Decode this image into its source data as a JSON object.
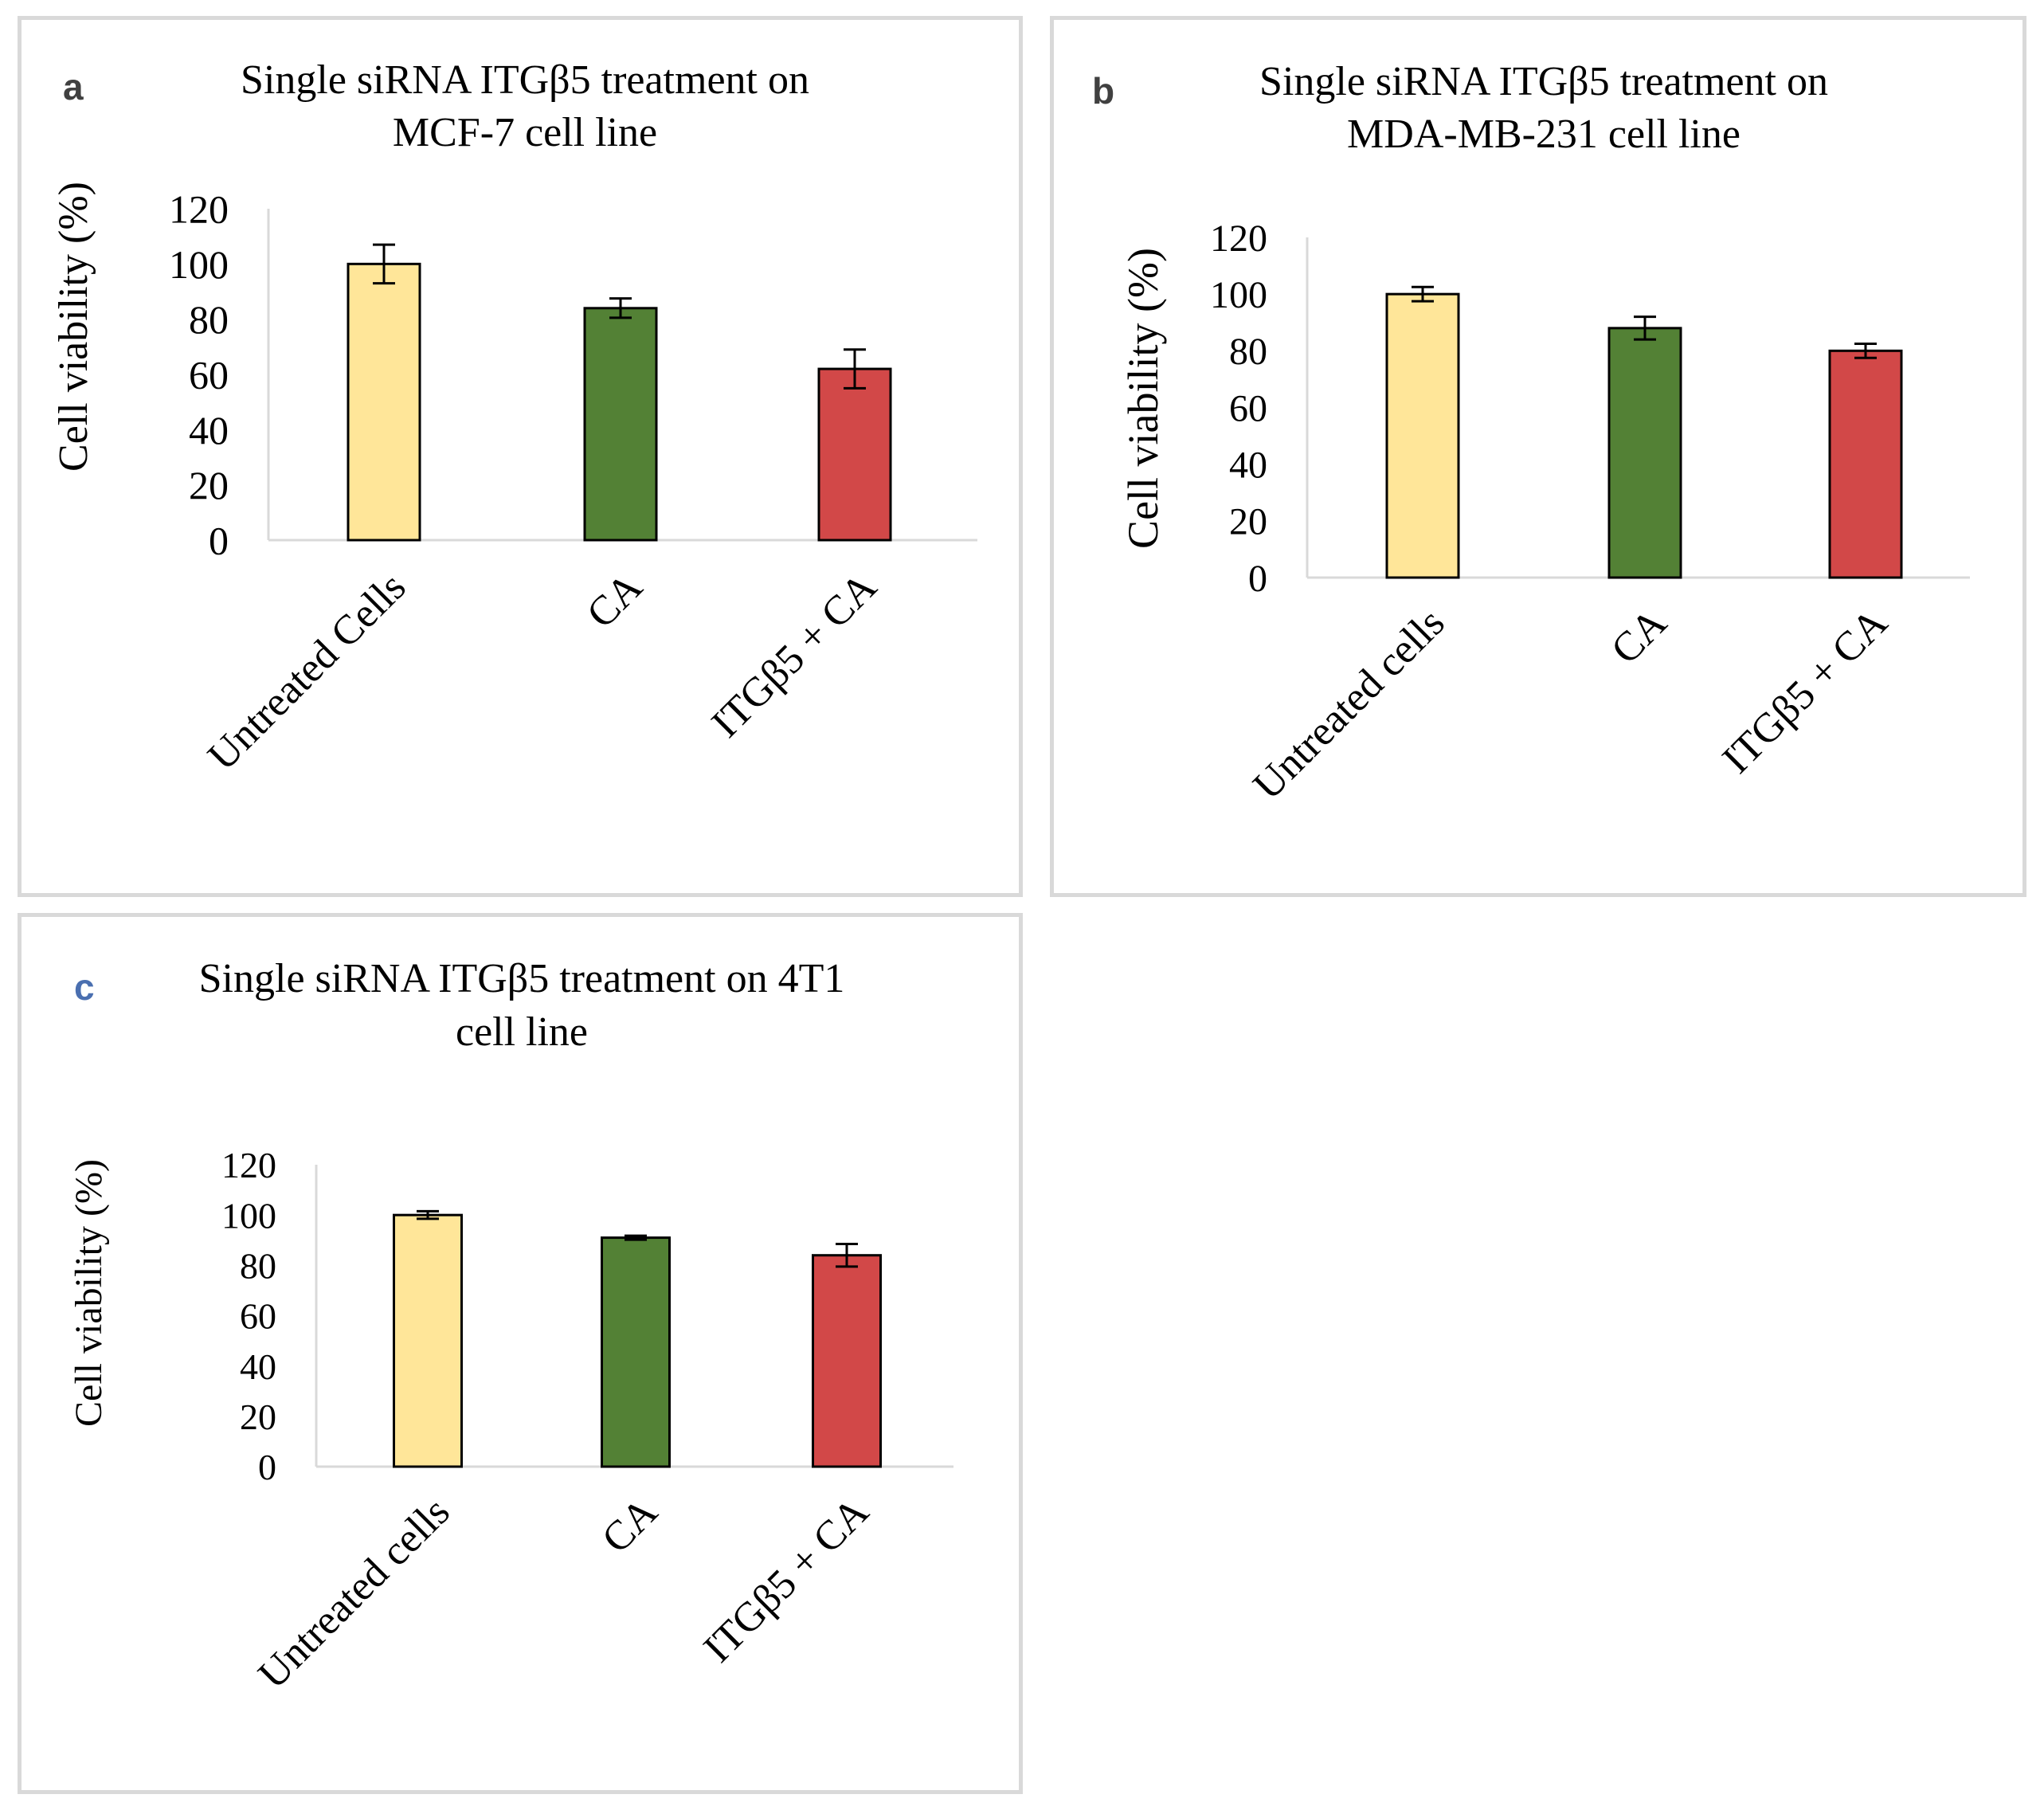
{
  "chart_data": [
    {
      "panel": "a",
      "type": "bar",
      "title_lines": [
        "Single  siRNA ITGβ5 treatment  on",
        "MCF-7 cell  line"
      ],
      "xlabel": "",
      "ylabel": "Cell  viability  (%)",
      "ylim": [
        0,
        120
      ],
      "yticks": [
        0,
        20,
        40,
        60,
        80,
        100,
        120
      ],
      "categories": [
        "Untreated Cells",
        "CA",
        "ITGβ5 + CA"
      ],
      "values": [
        100,
        84,
        62
      ],
      "errors": [
        7,
        3.5,
        7
      ],
      "colors": [
        "#FFE699",
        "#538135",
        "#D24848"
      ]
    },
    {
      "panel": "b",
      "type": "bar",
      "title_lines": [
        "Single  siRNA ITGβ5 treatment  on",
        "MDA-MB-231  cell  line"
      ],
      "xlabel": "",
      "ylabel": "Cell viability  (%)",
      "ylim": [
        0,
        120
      ],
      "yticks": [
        0,
        20,
        40,
        60,
        80,
        100,
        120
      ],
      "categories": [
        "Untreated cells",
        "CA",
        "ITGβ5 + CA"
      ],
      "values": [
        100,
        88,
        80
      ],
      "errors": [
        2.5,
        4,
        2.5
      ],
      "colors": [
        "#FFE699",
        "#538135",
        "#D24848"
      ]
    },
    {
      "panel": "c",
      "type": "bar",
      "title_lines": [
        "Single  siRNA ITGβ5 treatment  on 4T1",
        "cell  line"
      ],
      "xlabel": "",
      "ylabel": "Cell  viability  (%)",
      "ylim": [
        0,
        120
      ],
      "yticks": [
        0,
        20,
        40,
        60,
        80,
        100,
        120
      ],
      "categories": [
        "Untreated cells",
        "CA",
        "ITGβ5 + CA"
      ],
      "values": [
        100,
        91,
        84
      ],
      "errors": [
        1.5,
        0.8,
        4.5
      ],
      "colors": [
        "#FFE699",
        "#538135",
        "#D24848"
      ]
    }
  ],
  "panel_letters": {
    "a": "a",
    "b": "b",
    "c": "c",
    "a_color": "#404040",
    "b_color": "#404040",
    "c_color": "#4a6fb0"
  }
}
